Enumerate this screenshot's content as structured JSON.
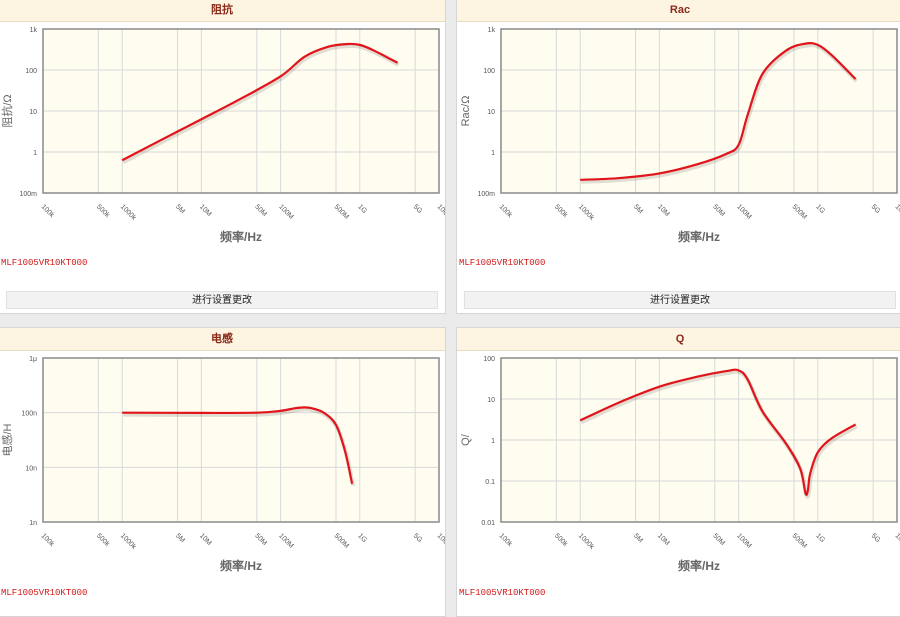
{
  "panels": [
    {
      "title": "阻抗",
      "part_number": "MLF1005VR10KT000",
      "button_label": "进行设置更改"
    },
    {
      "title": "Rac",
      "part_number": "MLF1005VR10KT000",
      "button_label": "进行设置更改"
    },
    {
      "title": "电感",
      "part_number": "MLF1005VR10KT000",
      "button_label": ""
    },
    {
      "title": "Q",
      "part_number": "MLF1005VR10KT000",
      "button_label": ""
    }
  ],
  "colors": {
    "curve": "#e0141a",
    "plot_bg": "#fffcf0",
    "grid": "#d9d9d9",
    "header_bg": "#fdf5e2",
    "title": "#8c2a1a"
  },
  "chart_data": [
    {
      "type": "line",
      "title": "阻抗",
      "xlabel": "频率/Hz",
      "ylabel": "阻抗/Ω",
      "x_scale": "log",
      "y_scale": "log",
      "xlim": [
        100000,
        10000000000
      ],
      "ylim": [
        0.1,
        1000
      ],
      "x_ticks": [
        "100k",
        "500k",
        "1000k",
        "5M",
        "10M",
        "50M",
        "100M",
        "500M",
        "1G",
        "5G",
        "10G"
      ],
      "x_tick_values": [
        100000,
        500000,
        1000000,
        5000000,
        10000000,
        50000000,
        100000000,
        500000000,
        1000000000,
        5000000000,
        10000000000
      ],
      "y_ticks": [
        "100m",
        "1",
        "10",
        "100",
        "1k"
      ],
      "y_tick_values": [
        0.1,
        1,
        10,
        100,
        1000
      ],
      "grid": true,
      "series": [
        {
          "x": [
            1000000,
            3000000,
            10000000,
            30000000,
            100000000,
            200000000,
            400000000,
            700000000,
            1000000000,
            1500000000,
            3000000000
          ],
          "y": [
            0.63,
            1.9,
            6.3,
            19,
            70,
            210,
            370,
            430,
            410,
            300,
            150
          ]
        }
      ]
    },
    {
      "type": "line",
      "title": "Rac",
      "xlabel": "频率/Hz",
      "ylabel": "Rac/Ω",
      "x_scale": "log",
      "y_scale": "log",
      "xlim": [
        100000,
        10000000000
      ],
      "ylim": [
        0.1,
        1000
      ],
      "x_ticks": [
        "100k",
        "500k",
        "1000k",
        "5M",
        "10M",
        "50M",
        "100M",
        "500M",
        "1G",
        "5G",
        "10G"
      ],
      "x_tick_values": [
        100000,
        500000,
        1000000,
        5000000,
        10000000,
        50000000,
        100000000,
        500000000,
        1000000000,
        5000000000,
        10000000000
      ],
      "y_ticks": [
        "100m",
        "1",
        "10",
        "100",
        "1k"
      ],
      "y_tick_values": [
        0.1,
        1,
        10,
        100,
        1000
      ],
      "grid": true,
      "series": [
        {
          "x": [
            1000000,
            3000000,
            10000000,
            30000000,
            70000000,
            100000000,
            130000000,
            200000000,
            400000000,
            700000000,
            1000000000,
            1500000000,
            3000000000
          ],
          "y": [
            0.21,
            0.23,
            0.3,
            0.5,
            0.9,
            1.5,
            8,
            80,
            300,
            440,
            410,
            230,
            60
          ]
        }
      ]
    },
    {
      "type": "line",
      "title": "电感",
      "xlabel": "频率/Hz",
      "ylabel": "电感/H",
      "x_scale": "log",
      "y_scale": "log",
      "xlim": [
        100000,
        10000000000
      ],
      "ylim": [
        1e-09,
        1e-06
      ],
      "x_ticks": [
        "100k",
        "500k",
        "1000k",
        "5M",
        "10M",
        "50M",
        "100M",
        "500M",
        "1G",
        "5G",
        "10G"
      ],
      "x_tick_values": [
        100000,
        500000,
        1000000,
        5000000,
        10000000,
        50000000,
        100000000,
        500000000,
        1000000000,
        5000000000,
        10000000000
      ],
      "y_ticks": [
        "1n",
        "10n",
        "100n",
        "1μ"
      ],
      "y_tick_values": [
        1e-09,
        1e-08,
        1e-07,
        1e-06
      ],
      "grid": true,
      "series": [
        {
          "x": [
            1000000,
            10000000,
            50000000,
            100000000,
            150000000,
            200000000,
            250000000,
            350000000,
            500000000,
            650000000,
            800000000
          ],
          "y": [
            1e-07,
            9.9e-08,
            1e-07,
            1.08e-07,
            1.2e-07,
            1.25e-07,
            1.2e-07,
            1e-07,
            6e-08,
            2e-08,
            5e-09
          ]
        }
      ]
    },
    {
      "type": "line",
      "title": "Q",
      "xlabel": "频率/Hz",
      "ylabel": "Q/",
      "x_scale": "log",
      "y_scale": "log",
      "xlim": [
        100000,
        10000000000
      ],
      "ylim": [
        0.01,
        100
      ],
      "x_ticks": [
        "100k",
        "500k",
        "1000k",
        "5M",
        "10M",
        "50M",
        "100M",
        "500M",
        "1G",
        "5G",
        "10G"
      ],
      "x_tick_values": [
        100000,
        500000,
        1000000,
        5000000,
        10000000,
        50000000,
        100000000,
        500000000,
        1000000000,
        5000000000,
        10000000000
      ],
      "y_ticks": [
        "0.01",
        "0.1",
        "1",
        "10",
        "100"
      ],
      "y_tick_values": [
        0.01,
        0.1,
        1,
        10,
        100
      ],
      "grid": true,
      "series": [
        {
          "x": [
            1000000,
            3000000,
            10000000,
            30000000,
            70000000,
            100000000,
            130000000,
            200000000,
            400000000,
            600000000,
            700000000,
            750000000,
            800000000,
            1000000000,
            1500000000,
            3000000000
          ],
          "y": [
            3,
            8,
            20,
            35,
            48,
            50,
            30,
            5,
            0.8,
            0.2,
            0.05,
            0.06,
            0.15,
            0.5,
            1.1,
            2.4
          ]
        }
      ]
    }
  ]
}
